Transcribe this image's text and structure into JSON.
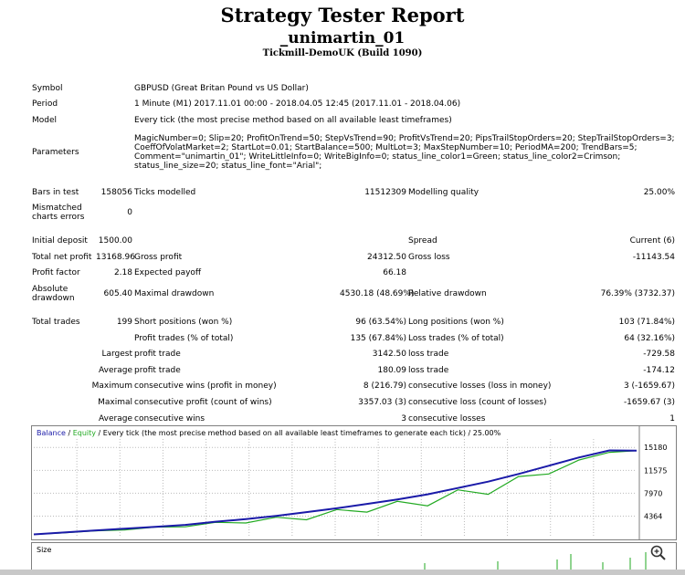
{
  "header": {
    "title": "Strategy Tester Report",
    "expert": "_unimartin_01",
    "server": "Tickmill-DemoUK (Build 1090)"
  },
  "summary": {
    "symbol_label": "Symbol",
    "symbol_value": "GBPUSD (Great Britan Pound vs US Dollar)",
    "period_label": "Period",
    "period_value": "1 Minute (M1) 2017.11.01 00:00 - 2018.04.05 12:45 (2017.11.01 - 2018.04.06)",
    "model_label": "Model",
    "model_value": "Every tick (the most precise method based on all available least timeframes)",
    "parameters_label": "Parameters",
    "parameters_value": "MagicNumber=0; Slip=20; ProfitOnTrend=50; StepVsTrend=90; ProfitVsTrend=20; PipsTrailStopOrders=20; StepTrailStopOrders=3; CoeffOfVolatMarket=2; StartLot=0.01; StartBalance=500; MultLot=3; MaxStepNumber=10; PeriodMA=200; TrendBars=5; Comment=\"unimartin_01\"; WriteLittleInfo=0; WriteBigInfo=0; status_line_color1=Green; status_line_color2=Crimson; status_line_size=20; status_line_font=\"Arial\";",
    "bars_label": "Bars in test",
    "bars_value": "158056",
    "ticks_label": "Ticks modelled",
    "ticks_value": "11512309",
    "quality_label": "Modelling quality",
    "quality_value": "25.00%",
    "mismatched_label": "Mismatched charts errors",
    "mismatched_value": "0",
    "deposit_label": "Initial deposit",
    "deposit_value": "1500.00",
    "spread_label": "Spread",
    "spread_value": "Current (6)",
    "netprofit_label": "Total net profit",
    "netprofit_value": "13168.96",
    "grossprofit_label": "Gross profit",
    "grossprofit_value": "24312.50",
    "grossloss_label": "Gross loss",
    "grossloss_value": "-11143.54",
    "pf_label": "Profit factor",
    "pf_value": "2.18",
    "payoff_label": "Expected payoff",
    "payoff_value": "66.18",
    "absdd_label": "Absolute drawdown",
    "absdd_value": "605.40",
    "maxdd_label": "Maximal drawdown",
    "maxdd_value": "4530.18 (48.69%)",
    "reldd_label": "Relative drawdown",
    "reldd_value": "76.39% (3732.37)",
    "trades_label": "Total trades",
    "trades_value": "199",
    "short_label": "Short positions (won %)",
    "short_value": "96 (63.54%)",
    "long_label": "Long positions (won %)",
    "long_value": "103 (71.84%)",
    "ptrades_label": "Profit trades (% of total)",
    "ptrades_value": "135 (67.84%)",
    "ltrades_label": "Loss trades (% of total)",
    "ltrades_value": "64 (32.16%)",
    "largest_label": "Largest",
    "largest_profit_label": "profit trade",
    "largest_profit_value": "3142.50",
    "largest_loss_label": "loss trade",
    "largest_loss_value": "-729.58",
    "average_label": "Average",
    "average_profit_label": "profit trade",
    "average_profit_value": "180.09",
    "average_loss_label": "loss trade",
    "average_loss_value": "-174.12",
    "maximum_label": "Maximum",
    "max_cwins_label": "consecutive wins (profit in money)",
    "max_cwins_value": "8 (216.79)",
    "max_closses_label": "consecutive losses (loss in money)",
    "max_closses_value": "3 (-1659.67)",
    "maximal_label": "Maximal",
    "maximal_cprofit_label": "consecutive profit (count of wins)",
    "maximal_cprofit_value": "3357.03 (3)",
    "maximal_closs_label": "consecutive loss (count of losses)",
    "maximal_closs_value": "-1659.67 (3)",
    "average2_label": "Average",
    "avg_cwins_label": "consecutive wins",
    "avg_cwins_value": "3",
    "avg_closses_label": "consecutive losses",
    "avg_closses_value": "1"
  },
  "chart_legend": {
    "balance": "Balance",
    "sep": " / ",
    "equity": "Equity",
    "rest": " / Every tick (the most precise method based on all available least timeframes to generate each tick) / 25.00%"
  },
  "size_panel_label": "Size",
  "chart_data": {
    "type": "line",
    "title": "Balance / Equity / Every tick (the most precise method based on all available least timeframes to generate each tick) / 25.00%",
    "xlabel": "",
    "ylabel": "",
    "yticks": [
      15180,
      11575,
      7970,
      4364
    ],
    "ylim": [
      1000,
      16500
    ],
    "grid": true,
    "series": [
      {
        "name": "Balance",
        "color": "#1a1aa8",
        "x": [
          0,
          10,
          20,
          30,
          40,
          50,
          60,
          70,
          80,
          90,
          100,
          110,
          120,
          130,
          140,
          150,
          160,
          170,
          180,
          190,
          199
        ],
        "values": [
          1500,
          1800,
          2100,
          2400,
          2700,
          3000,
          3500,
          3900,
          4400,
          5000,
          5600,
          6300,
          7000,
          7800,
          8800,
          9800,
          11000,
          12300,
          13600,
          14700,
          14669
        ]
      },
      {
        "name": "Equity",
        "color": "#22aa22",
        "x": [
          0,
          10,
          20,
          30,
          40,
          50,
          60,
          70,
          80,
          90,
          100,
          110,
          120,
          130,
          140,
          150,
          160,
          170,
          180,
          190,
          199
        ],
        "values": [
          1500,
          1750,
          2050,
          2200,
          2650,
          2700,
          3400,
          3300,
          4200,
          3800,
          5400,
          5000,
          6700,
          6000,
          8500,
          7800,
          10600,
          11000,
          13200,
          14400,
          14669
        ]
      }
    ],
    "size_panel_label": "Size",
    "size_panel_note": "lot sizes (shown as green bars)"
  },
  "colors": {
    "balance": "#1a1aa8",
    "equity": "#22aa22",
    "grid": "#bbbbbb"
  },
  "icons": {
    "zoom": "zoom-icon"
  }
}
